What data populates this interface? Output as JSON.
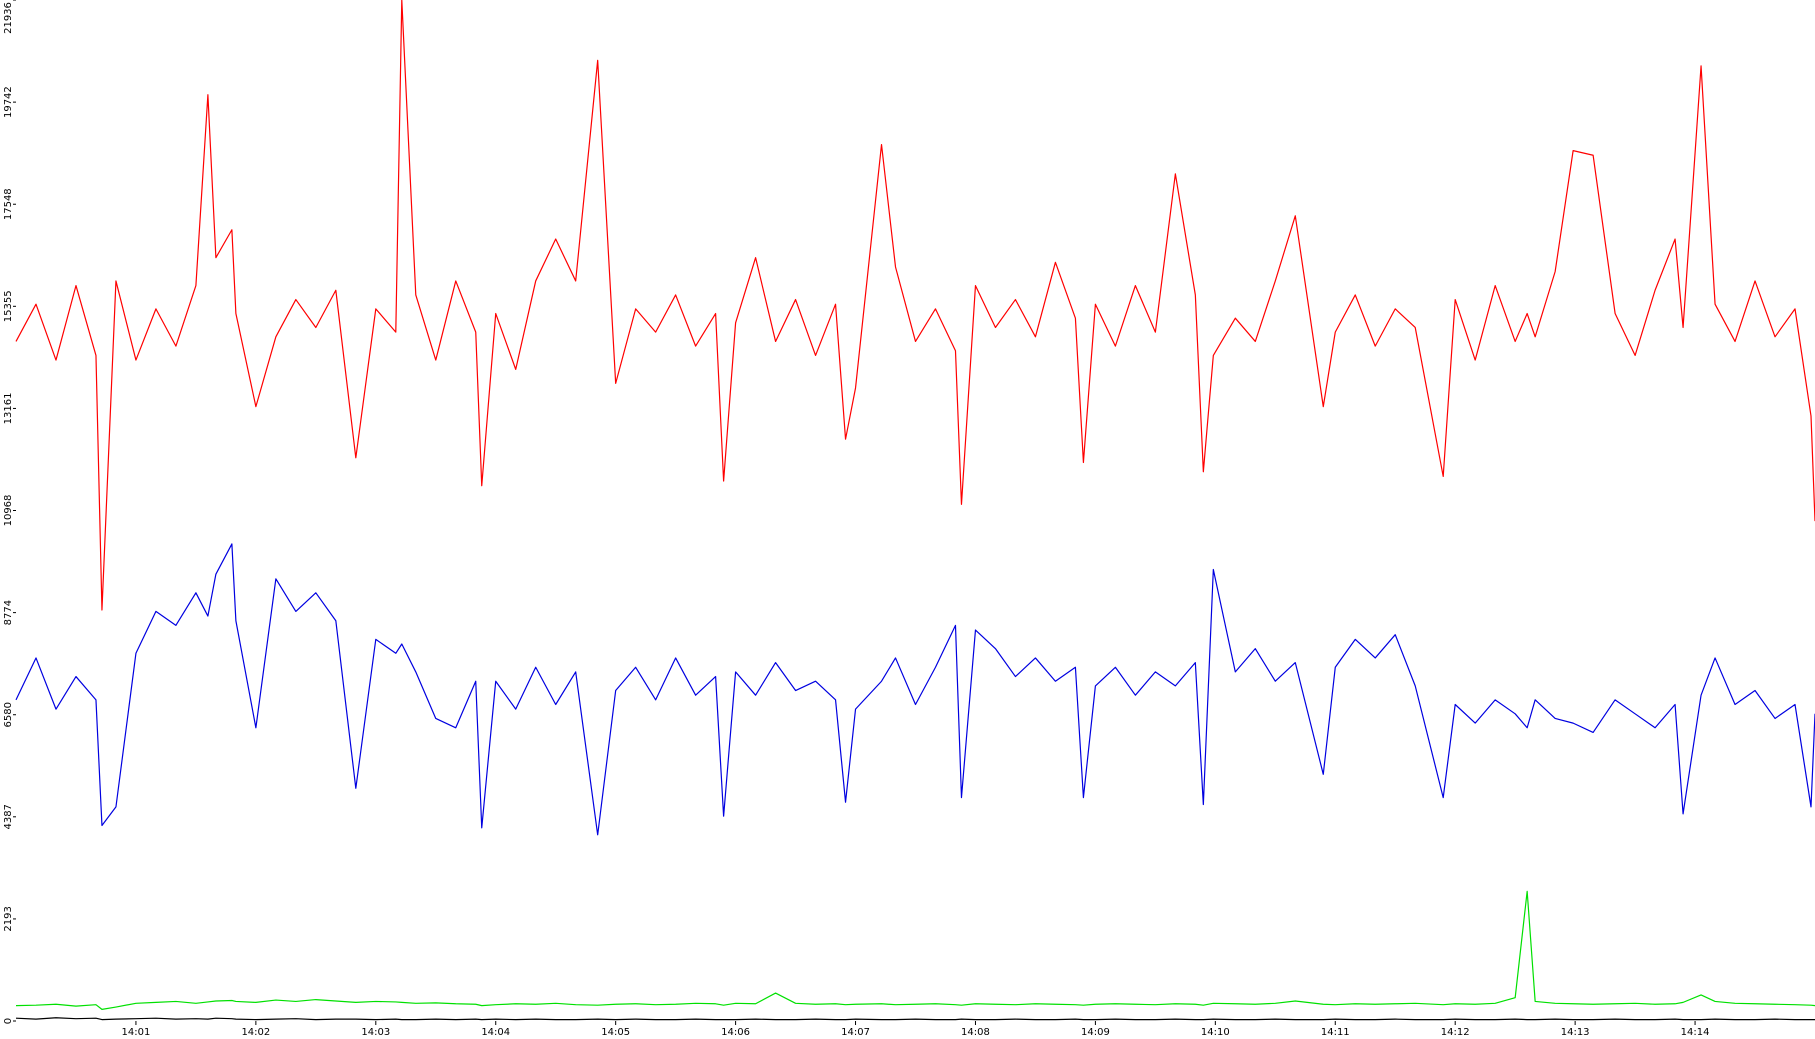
{
  "chart_data": {
    "type": "line",
    "x": [
      0,
      10,
      20,
      30,
      40,
      43,
      50,
      60,
      70,
      80,
      90,
      96,
      100,
      108,
      110,
      120,
      130,
      140,
      150,
      160,
      170,
      180,
      190,
      193,
      200,
      210,
      220,
      230,
      233,
      240,
      250,
      260,
      270,
      280,
      291,
      300,
      310,
      320,
      330,
      340,
      350,
      354,
      360,
      370,
      380,
      390,
      400,
      410,
      415,
      420,
      433,
      440,
      450,
      460,
      470,
      473,
      480,
      490,
      500,
      510,
      520,
      530,
      534,
      540,
      550,
      560,
      570,
      580,
      590,
      594,
      599,
      610,
      620,
      630,
      640,
      654,
      660,
      670,
      680,
      690,
      700,
      714,
      720,
      730,
      740,
      750,
      756,
      760,
      770,
      779,
      789,
      800,
      810,
      820,
      830,
      834,
      843,
      850,
      860,
      870,
      880,
      890,
      898,
      900
    ],
    "xlim": [
      0,
      900
    ],
    "xticks": [
      {
        "value": 60,
        "label": "14:01"
      },
      {
        "value": 120,
        "label": "14:02"
      },
      {
        "value": 180,
        "label": "14:03"
      },
      {
        "value": 240,
        "label": "14:04"
      },
      {
        "value": 300,
        "label": "14:05"
      },
      {
        "value": 360,
        "label": "14:06"
      },
      {
        "value": 420,
        "label": "14:07"
      },
      {
        "value": 480,
        "label": "14:08"
      },
      {
        "value": 540,
        "label": "14:09"
      },
      {
        "value": 600,
        "label": "14:10"
      },
      {
        "value": 660,
        "label": "14:11"
      },
      {
        "value": 720,
        "label": "14:12"
      },
      {
        "value": 780,
        "label": "14:13"
      },
      {
        "value": 840,
        "label": "14:14"
      }
    ],
    "ylim": [
      0,
      21936
    ],
    "yticks": [
      0,
      2193,
      4387,
      6580,
      8774,
      10968,
      13161,
      15355,
      17548,
      19742,
      21936
    ],
    "series": [
      {
        "color": "#ff0000",
        "values": [
          14600,
          15400,
          14200,
          15800,
          14300,
          8830,
          15900,
          14200,
          15300,
          14500,
          15800,
          19900,
          16400,
          17000,
          15200,
          13200,
          14700,
          15500,
          14900,
          15700,
          12100,
          15300,
          14800,
          21936,
          15600,
          14200,
          15900,
          14800,
          11500,
          15200,
          14000,
          15900,
          16800,
          15900,
          20640,
          13700,
          15300,
          14800,
          15600,
          14500,
          15200,
          11600,
          15000,
          16400,
          14600,
          15500,
          14300,
          15400,
          12500,
          13600,
          18830,
          16200,
          14600,
          15300,
          14400,
          11100,
          15800,
          14900,
          15500,
          14700,
          16300,
          15100,
          12000,
          15400,
          14500,
          15800,
          14800,
          18200,
          15600,
          11800,
          14300,
          15100,
          14600,
          15900,
          17300,
          13200,
          14800,
          15600,
          14500,
          15300,
          14900,
          11700,
          15500,
          14200,
          15800,
          14600,
          15200,
          14700,
          16100,
          18700,
          18600,
          15200,
          14300,
          15700,
          16800,
          14900,
          20520,
          15400,
          14600,
          15900,
          14700,
          15300,
          13000,
          10740
        ]
      },
      {
        "color": "#0000e0",
        "values": [
          6900,
          7800,
          6700,
          7400,
          6900,
          4200,
          4600,
          7900,
          8800,
          8500,
          9200,
          8700,
          9600,
          10250,
          8600,
          6300,
          9500,
          8800,
          9200,
          8600,
          5000,
          8200,
          7900,
          8100,
          7500,
          6500,
          6300,
          7300,
          4150,
          7300,
          6700,
          7600,
          6800,
          7500,
          4000,
          7100,
          7600,
          6900,
          7800,
          7000,
          7400,
          4400,
          7500,
          7000,
          7700,
          7100,
          7300,
          6900,
          4700,
          6700,
          7300,
          7800,
          6800,
          7600,
          8500,
          4800,
          8400,
          8000,
          7400,
          7800,
          7300,
          7600,
          4800,
          7200,
          7600,
          7000,
          7500,
          7200,
          7700,
          4650,
          9700,
          7500,
          8000,
          7300,
          7700,
          5300,
          7600,
          8200,
          7800,
          8300,
          7200,
          4800,
          6800,
          6400,
          6900,
          6600,
          6300,
          6900,
          6500,
          6400,
          6200,
          6900,
          6600,
          6300,
          6800,
          4450,
          7000,
          7800,
          6800,
          7100,
          6500,
          6800,
          4600,
          6600
        ]
      },
      {
        "color": "#00e000",
        "values": [
          330,
          340,
          360,
          320,
          350,
          250,
          300,
          380,
          400,
          420,
          380,
          410,
          430,
          440,
          420,
          400,
          450,
          420,
          460,
          430,
          400,
          420,
          410,
          400,
          380,
          390,
          370,
          360,
          330,
          350,
          370,
          360,
          380,
          350,
          340,
          360,
          370,
          350,
          360,
          380,
          370,
          340,
          380,
          370,
          600,
          380,
          360,
          370,
          350,
          360,
          370,
          350,
          360,
          370,
          350,
          340,
          370,
          360,
          350,
          370,
          360,
          350,
          340,
          360,
          370,
          360,
          350,
          370,
          360,
          340,
          380,
          370,
          360,
          380,
          430,
          360,
          350,
          370,
          360,
          370,
          380,
          350,
          370,
          360,
          380,
          500,
          2785,
          420,
          380,
          370,
          360,
          370,
          380,
          360,
          370,
          400,
          560,
          420,
          380,
          370,
          360,
          350,
          340,
          330
        ]
      },
      {
        "color": "#000000",
        "values": [
          60,
          40,
          70,
          50,
          60,
          30,
          40,
          50,
          60,
          40,
          50,
          40,
          60,
          50,
          40,
          30,
          40,
          50,
          30,
          40,
          40,
          30,
          40,
          30,
          30,
          40,
          30,
          40,
          30,
          40,
          30,
          40,
          30,
          30,
          40,
          30,
          40,
          30,
          30,
          40,
          30,
          30,
          30,
          40,
          30,
          30,
          40,
          30,
          30,
          40,
          30,
          30,
          40,
          30,
          30,
          40,
          30,
          30,
          40,
          30,
          30,
          40,
          30,
          30,
          40,
          30,
          30,
          40,
          30,
          30,
          40,
          30,
          30,
          40,
          30,
          30,
          40,
          30,
          30,
          40,
          30,
          30,
          40,
          30,
          30,
          40,
          30,
          30,
          40,
          30,
          30,
          40,
          30,
          30,
          40,
          30,
          30,
          40,
          30,
          30,
          40,
          30,
          30,
          30
        ]
      }
    ]
  }
}
